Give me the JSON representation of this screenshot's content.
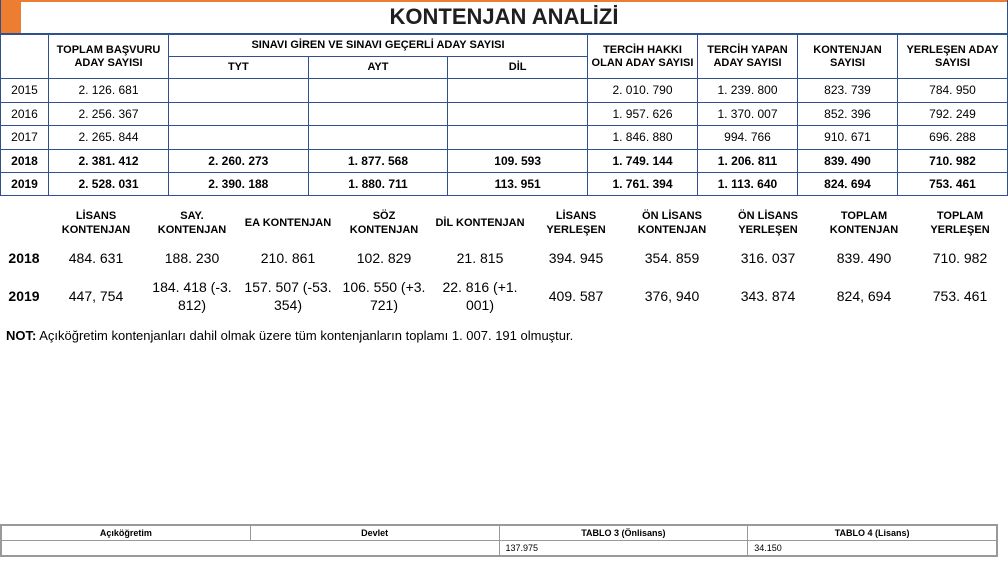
{
  "title": "KONTENJAN ANALİZİ",
  "table1": {
    "headers": {
      "col_basvuru": "TOPLAM BAŞVURU ADAY SAYISI",
      "col_sinavi_giren": "SINAVI GİREN VE SINAVI GEÇERLİ ADAY SAYISI",
      "col_tyt": "TYT",
      "col_ayt": "AYT",
      "col_dil": "DİL",
      "col_tercih_hakki": "TERCİH HAKKI OLAN ADAY SAYISI",
      "col_tercih_yapan": "TERCİH YAPAN ADAY SAYISI",
      "col_kontenjan": "KONTENJAN SAYISI",
      "col_yerlesen": "YERLEŞEN ADAY SAYISI"
    },
    "rows": [
      {
        "year": "2015",
        "cls": "year-small",
        "basvuru": "2. 126. 681",
        "tyt": "",
        "ayt": "",
        "dil": "",
        "tercih_hakki": "2. 010. 790",
        "tercih_yapan": "1. 239. 800",
        "kontenjan": "823. 739",
        "yerlesen": "784. 950"
      },
      {
        "year": "2016",
        "cls": "year-small",
        "basvuru": "2. 256. 367",
        "tyt": "",
        "ayt": "",
        "dil": "",
        "tercih_hakki": "1. 957. 626",
        "tercih_yapan": "1. 370. 007",
        "kontenjan": "852. 396",
        "yerlesen": "792. 249"
      },
      {
        "year": "2017",
        "cls": "year-small",
        "basvuru": "2. 265. 844",
        "tyt": "",
        "ayt": "",
        "dil": "",
        "tercih_hakki": "1. 846. 880",
        "tercih_yapan": "994. 766",
        "kontenjan": "910. 671",
        "yerlesen": "696. 288"
      },
      {
        "year": "2018",
        "cls": "y2018",
        "basvuru": "2. 381. 412",
        "tyt": "2. 260. 273",
        "ayt": "1. 877. 568",
        "dil": "109. 593",
        "tercih_hakki": "1. 749. 144",
        "tercih_yapan": "1. 206. 811",
        "kontenjan": "839. 490",
        "yerlesen": "710. 982"
      },
      {
        "year": "2019",
        "cls": "y2019",
        "basvuru": "2. 528. 031",
        "tyt": "2. 390. 188",
        "ayt": "1. 880. 711",
        "dil": "113. 951",
        "tercih_hakki": "1. 761. 394",
        "tercih_yapan": "1. 113. 640",
        "kontenjan": "824. 694",
        "yerlesen": "753. 461"
      }
    ]
  },
  "table2": {
    "headers": {
      "lisans_kont": "LİSANS KONTENJAN",
      "say_kont": "SAY. KONTENJAN",
      "ea_kont": "EA KONTENJAN",
      "soz_kont": "SÖZ KONTENJAN",
      "dil_kont": "DİL KONTENJAN",
      "lisans_yer": "LİSANS YERLEŞEN",
      "onlisans_kont": "ÖN LİSANS KONTENJAN",
      "onlisans_yer": "ÖN LİSANS YERLEŞEN",
      "toplam_kont": "TOPLAM KONTENJAN",
      "toplam_yer": "TOPLAM YERLEŞEN"
    },
    "rows": [
      {
        "year": "2018",
        "lisans_kont": "484. 631",
        "say": "188. 230",
        "ea": "210. 861",
        "soz": "102. 829",
        "dil": "21. 815",
        "lisans_yer": "394. 945",
        "onlisans_kont": "354. 859",
        "onlisans_yer": "316. 037",
        "toplam_kont": "839. 490",
        "toplam_yer": "710. 982"
      },
      {
        "year": "2019",
        "lisans_kont": "447, 754",
        "say": "184. 418 (-3. 812)",
        "ea": "157. 507 (-53. 354)",
        "soz": "106. 550 (+3. 721)",
        "dil": "22. 816 (+1. 001)",
        "lisans_yer": "409. 587",
        "onlisans_kont": "376, 940",
        "onlisans_yer": "343. 874",
        "toplam_kont": "824, 694",
        "toplam_yer": "753. 461"
      }
    ]
  },
  "note_label": "NOT:",
  "note_text": " Açıköğretim kontenjanları dahil olmak üzere tüm kontenjanların toplamı 1. 007. 191 olmuştur.",
  "foot": {
    "h1": "Açıköğretim",
    "h2": "Devlet",
    "c1": "TABLO 3 (Önlisans)",
    "c2": "TABLO 4 (Lisans)",
    "v1": "137.975",
    "v2": "34.150"
  },
  "colors": {
    "border": "#2f528f",
    "accent": "#ed7d31",
    "text": "#1f1f1f",
    "background": "#ffffff"
  }
}
